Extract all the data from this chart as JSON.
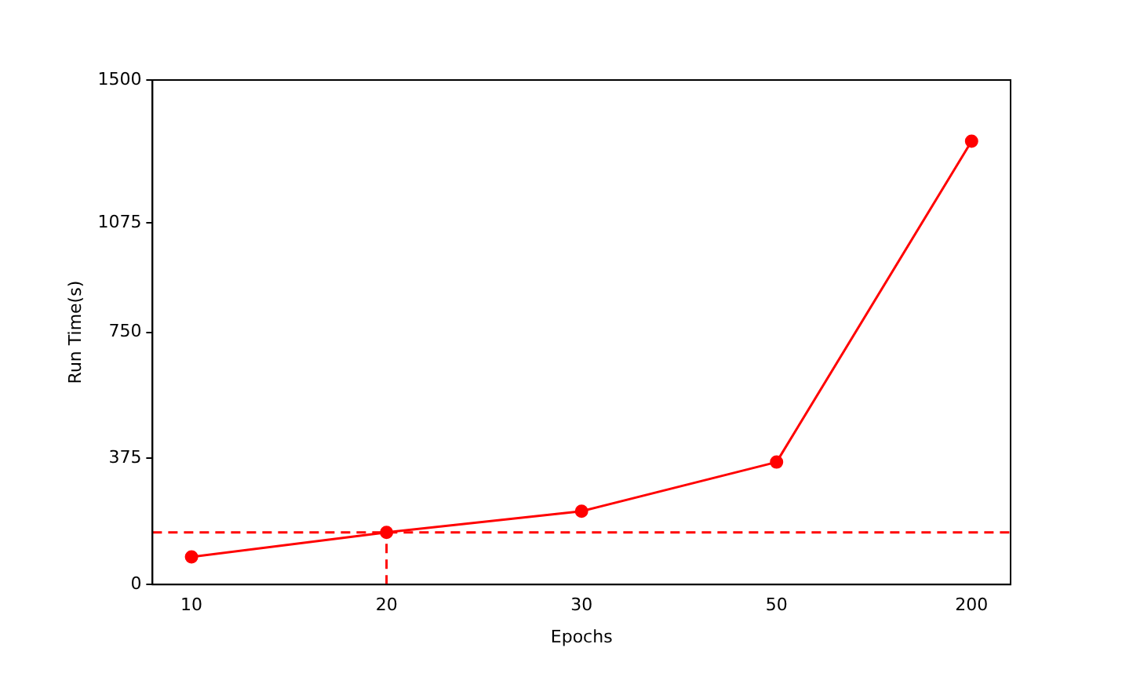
{
  "chart_data": {
    "type": "line",
    "xlabel": "Epochs",
    "ylabel": "Run Time(s)",
    "categories": [
      "10",
      "20",
      "30",
      "50",
      "200"
    ],
    "series": [
      {
        "color": "#ff0000",
        "values": [
          82,
          155,
          218,
          364,
          1318
        ]
      }
    ],
    "ylim": [
      0,
      1500
    ],
    "yticks": [
      0,
      375,
      750,
      1075,
      1500
    ],
    "ref_lines": [
      {
        "axis": "y",
        "value": 155,
        "color": "#ff0000",
        "line_style": "dashed"
      },
      {
        "axis": "x",
        "value": "20",
        "color": "#ff0000",
        "line_style": "dashed"
      }
    ],
    "marker": "circle",
    "grid": false,
    "legend": false
  }
}
